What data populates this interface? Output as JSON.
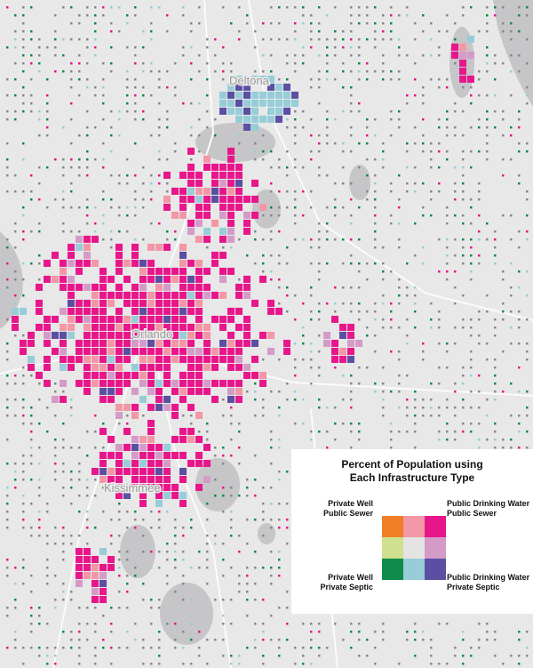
{
  "map": {
    "places": [
      "Deltona",
      "Orlando",
      "Kissimmee"
    ],
    "legend": {
      "title": [
        "Percent of Population using",
        "Each Infrastructure Type"
      ],
      "top_left": [
        "Private Well",
        "Public Sewer"
      ],
      "top_right": [
        "Public Drinking Water",
        "Public Sewer"
      ],
      "bottom_left": [
        "Private Well",
        "Private Septic"
      ],
      "bottom_right": [
        "Public Drinking Water",
        "Private Septic"
      ],
      "colors": [
        [
          "#f07e26",
          "#f397a6",
          "#e8168b"
        ],
        [
          "#cfe08e",
          "#e4e4e4",
          "#d49bc9"
        ],
        [
          "#0e8a4a",
          "#96cdd9",
          "#5a4fa3"
        ]
      ]
    }
  }
}
